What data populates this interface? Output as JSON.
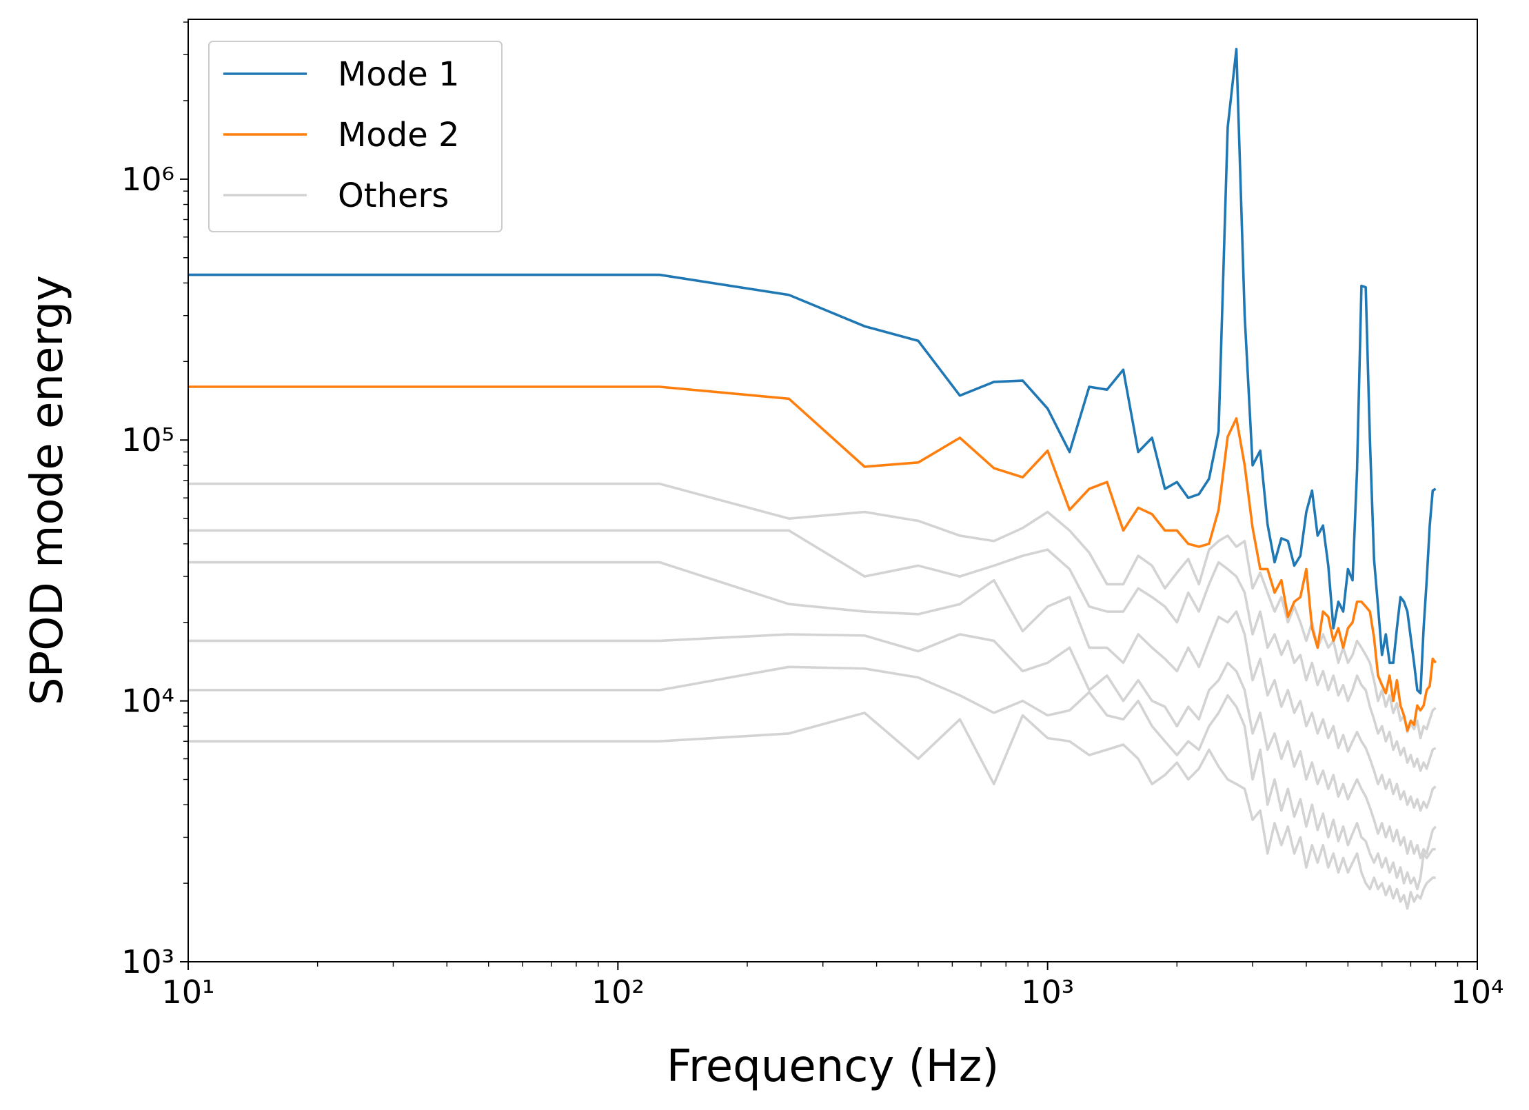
{
  "chart_data": {
    "type": "line",
    "xlabel": "Frequency (Hz)",
    "ylabel": "SPOD mode energy",
    "log_x": true,
    "log_y": true,
    "legend": "upper left",
    "x": [
      10,
      125,
      250,
      375,
      500,
      625,
      750,
      875,
      1000,
      1125,
      1250,
      1375,
      1500,
      1625,
      1750,
      1875,
      2000,
      2125,
      2250,
      2375,
      2500,
      2625,
      2750,
      2875,
      3000,
      3125,
      3250,
      3375,
      3500,
      3625,
      3750,
      3875,
      4000,
      4125,
      4250,
      4375,
      4500,
      4625,
      4750,
      4875,
      5000,
      5125,
      5250,
      5375,
      5500,
      5625,
      5750,
      5875,
      6000,
      6125,
      6250,
      6375,
      6500,
      6625,
      6750,
      6875,
      7000,
      7125,
      7250,
      7375,
      7500,
      7625,
      7750,
      7875,
      8000
    ],
    "series": [
      {
        "name": "Mode 1",
        "color": "#1f77b4",
        "values": [
          430000,
          430000,
          360000,
          273000,
          240000,
          148000,
          167000,
          169000,
          132000,
          90000,
          160000,
          156000,
          186000,
          90000,
          102000,
          65000,
          69000,
          60000,
          62000,
          71000,
          108000,
          1580000,
          3150000,
          300000,
          80000,
          91000,
          47500,
          34000,
          42000,
          41000,
          33000,
          36000,
          53000,
          64000,
          43000,
          47000,
          33000,
          19000,
          24000,
          22000,
          32000,
          29000,
          77000,
          390000,
          385000,
          100000,
          35000,
          23000,
          15000,
          18000,
          14000,
          14000,
          19000,
          25000,
          24000,
          22000,
          17500,
          14000,
          11000,
          10700,
          19000,
          29000,
          47000,
          64000,
          65000
        ]
      },
      {
        "name": "Mode 2",
        "color": "#ff7f0e",
        "values": [
          160000,
          160000,
          144000,
          79000,
          82000,
          102000,
          78000,
          72000,
          91000,
          54000,
          65000,
          69000,
          45000,
          55000,
          52000,
          45000,
          45000,
          40000,
          39000,
          40000,
          54000,
          103000,
          121000,
          80000,
          46000,
          32000,
          32000,
          26000,
          29000,
          21000,
          24000,
          25000,
          32000,
          19000,
          16000,
          22000,
          21000,
          17000,
          19000,
          16000,
          19000,
          20000,
          24000,
          24000,
          23000,
          22000,
          17500,
          12500,
          11500,
          10700,
          12500,
          10000,
          12000,
          9600,
          8800,
          7700,
          8400,
          8100,
          9600,
          9200,
          9600,
          11000,
          11400,
          14500,
          14000
        ]
      }
    ],
    "others": {
      "name": "Others",
      "color": "#d3d3d3",
      "values": [
        [
          68000,
          68000,
          50000,
          53000,
          49000,
          43000,
          41000,
          46000,
          53000,
          45000,
          37000,
          28000,
          28000,
          36000,
          33000,
          27000,
          31000,
          35000,
          28000,
          38000,
          41000,
          43000,
          39000,
          41000,
          27000,
          31000,
          26000,
          22000,
          25000,
          20000,
          23000,
          20000,
          17000,
          20000,
          16000,
          18000,
          16000,
          17000,
          14000,
          16000,
          14000,
          15000,
          17000,
          16000,
          15000,
          14000,
          12000,
          10000,
          11000,
          9500,
          10500,
          9000,
          9800,
          8400,
          8800,
          7600,
          8200,
          7800,
          8400,
          7200,
          8000,
          7800,
          8500,
          9200,
          9400
        ],
        [
          45000,
          45000,
          45000,
          30000,
          33000,
          30000,
          33000,
          36000,
          38000,
          32000,
          23000,
          22000,
          22000,
          27000,
          25000,
          23000,
          20000,
          26000,
          22000,
          28000,
          34000,
          32000,
          30000,
          26000,
          18000,
          22000,
          16000,
          18000,
          15000,
          17000,
          14000,
          15000,
          12000,
          14000,
          11500,
          13000,
          11000,
          12500,
          10500,
          11500,
          10000,
          11000,
          12500,
          11500,
          11000,
          9500,
          8500,
          7500,
          8000,
          7000,
          7600,
          6500,
          7000,
          6200,
          6600,
          5800,
          6200,
          5600,
          6000,
          5400,
          5800,
          5500,
          6000,
          6500,
          6600
        ],
        [
          34000,
          34000,
          23500,
          22000,
          21500,
          23500,
          29000,
          18500,
          23000,
          25000,
          16000,
          16000,
          14000,
          18000,
          16000,
          14500,
          13000,
          16000,
          13500,
          17000,
          21000,
          20000,
          22000,
          18000,
          12000,
          14500,
          10500,
          12000,
          9500,
          11000,
          9000,
          10000,
          8000,
          9000,
          7500,
          8500,
          7200,
          8000,
          6600,
          7400,
          6400,
          7000,
          7600,
          7000,
          6600,
          6000,
          5400,
          4800,
          5200,
          4600,
          5000,
          4400,
          4800,
          4200,
          4500,
          4000,
          4300,
          3900,
          4200,
          3800,
          4100,
          3900,
          4200,
          4600,
          4700
        ],
        [
          17000,
          17000,
          18000,
          17800,
          15500,
          18000,
          17000,
          13000,
          14000,
          16000,
          11000,
          12500,
          10000,
          12000,
          10000,
          9500,
          8000,
          9500,
          8500,
          11000,
          12000,
          14000,
          13000,
          11000,
          7500,
          9000,
          6500,
          7500,
          6000,
          7000,
          5600,
          6400,
          5000,
          5800,
          4800,
          5400,
          4600,
          5200,
          4300,
          4800,
          4200,
          4600,
          5000,
          4600,
          4300,
          3900,
          3500,
          3100,
          3400,
          3000,
          3300,
          2900,
          3200,
          2800,
          3000,
          2600,
          2900,
          2600,
          2800,
          2500,
          2700,
          2600,
          2900,
          3200,
          3300
        ],
        [
          11000,
          11000,
          13500,
          13300,
          12300,
          10500,
          9000,
          10000,
          8800,
          9200,
          10800,
          8800,
          8500,
          10000,
          8000,
          7000,
          6200,
          7000,
          6500,
          8000,
          9000,
          10500,
          9500,
          8000,
          5000,
          6500,
          4000,
          5000,
          3800,
          4600,
          3600,
          4200,
          3300,
          4000,
          3200,
          3700,
          3000,
          3500,
          2900,
          3300,
          2800,
          3100,
          3400,
          3000,
          2900,
          2600,
          2400,
          2600,
          2300,
          2500,
          2200,
          2400,
          2100,
          2300,
          2000,
          2200,
          2000,
          2100,
          1900,
          2100,
          2600,
          2500,
          2600,
          2700,
          2700
        ],
        [
          7000,
          7000,
          7500,
          9000,
          6000,
          8500,
          4800,
          8800,
          7200,
          7000,
          6200,
          6500,
          6800,
          6000,
          4800,
          5200,
          5800,
          5000,
          5500,
          6500,
          5600,
          5000,
          4800,
          4600,
          3500,
          3800,
          2600,
          3400,
          2800,
          3300,
          2600,
          3000,
          2300,
          2800,
          2400,
          2800,
          2300,
          2600,
          2200,
          2500,
          2200,
          2400,
          2600,
          2200,
          2000,
          1900,
          2100,
          1900,
          2000,
          1800,
          1950,
          1750,
          1900,
          1700,
          1800,
          1600,
          1850,
          1700,
          1800,
          1750,
          1900,
          2000,
          2050,
          2100,
          2100
        ]
      ]
    },
    "xlim": [
      10,
      10000
    ],
    "ylim": [
      1000,
      4100000
    ],
    "xticks": [
      {
        "value": 10,
        "label": "10¹"
      },
      {
        "value": 100,
        "label": "10²"
      },
      {
        "value": 1000,
        "label": "10³"
      },
      {
        "value": 10000,
        "label": "10⁴"
      }
    ],
    "yticks": [
      {
        "value": 1000,
        "label": "10³"
      },
      {
        "value": 10000,
        "label": "10⁴"
      },
      {
        "value": 100000,
        "label": "10⁵"
      },
      {
        "value": 1000000,
        "label": "10⁶"
      }
    ],
    "xminor": [
      20,
      30,
      40,
      50,
      60,
      70,
      80,
      90,
      200,
      300,
      400,
      500,
      600,
      700,
      800,
      900,
      2000,
      3000,
      4000,
      5000,
      6000,
      7000,
      8000,
      9000
    ],
    "yminor": [
      2000,
      3000,
      4000,
      5000,
      6000,
      7000,
      8000,
      9000,
      20000,
      30000,
      40000,
      50000,
      60000,
      70000,
      80000,
      90000,
      200000,
      300000,
      400000,
      500000,
      600000,
      700000,
      800000,
      900000,
      2000000,
      3000000,
      4000000
    ]
  }
}
